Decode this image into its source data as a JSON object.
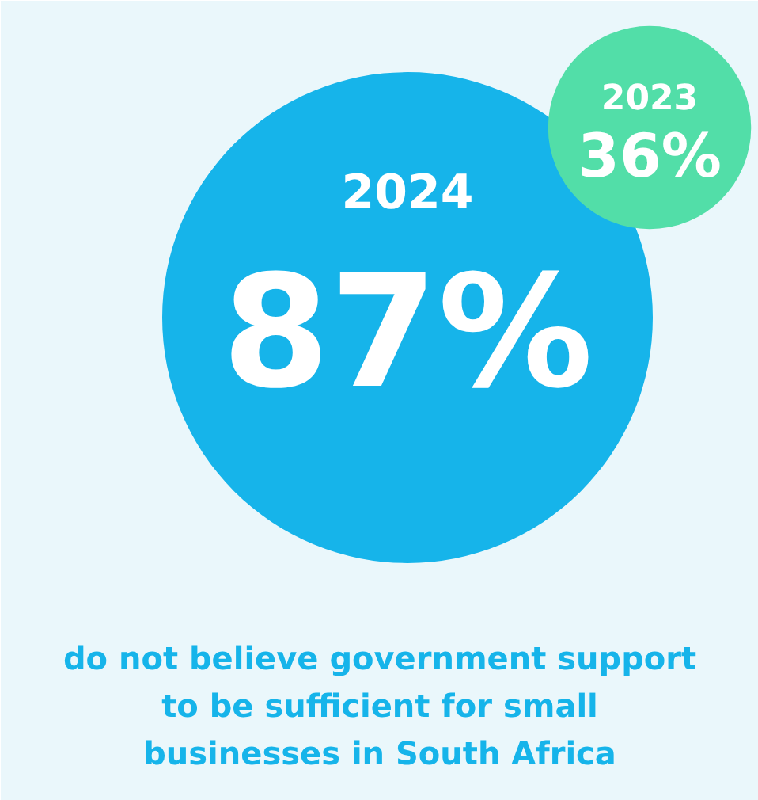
{
  "chart_data": {
    "type": "other",
    "categories": [
      "2024",
      "2023"
    ],
    "values": [
      87,
      36
    ],
    "value_labels": [
      "87%",
      "36%"
    ],
    "colors": [
      "#16b4ea",
      "#52dea8"
    ],
    "annotations": [
      "do not believe government support to be sufficient for small businesses in South Africa"
    ]
  }
}
